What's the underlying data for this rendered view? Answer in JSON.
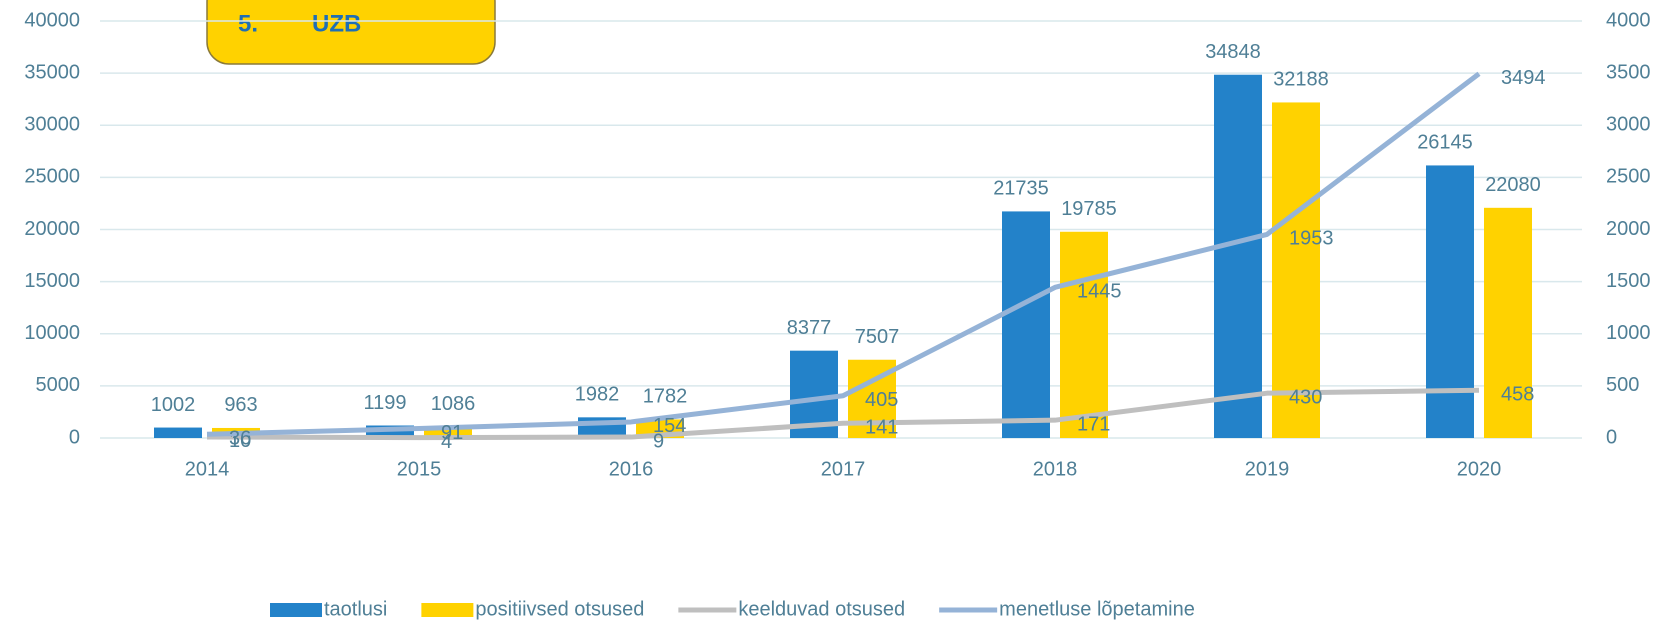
{
  "chart_data": {
    "type": "bar-line",
    "title_number": "5.",
    "title": "UZB",
    "categories": [
      "2014",
      "2015",
      "2016",
      "2017",
      "2018",
      "2019",
      "2020"
    ],
    "series": [
      {
        "name": "taotlusi",
        "type": "bar",
        "color": "#2382c9",
        "values": [
          1002,
          1199,
          1982,
          8377,
          21735,
          34848,
          26145
        ]
      },
      {
        "name": "positiivsed otsused",
        "type": "bar",
        "color": "#ffd200",
        "values": [
          963,
          1086,
          1782,
          7507,
          19785,
          32188,
          22080
        ]
      },
      {
        "name": "keelduvad otsused",
        "type": "line",
        "axis": "y2",
        "color": "#bfbfbf",
        "values": [
          10,
          4,
          9,
          141,
          171,
          430,
          458
        ]
      },
      {
        "name": "menetluse lõpetamine",
        "type": "line",
        "axis": "y2",
        "color": "#95b3d7",
        "values": [
          36,
          91,
          154,
          405,
          1445,
          1953,
          3494
        ]
      }
    ],
    "ylim": [
      0,
      40000
    ],
    "yticks": [
      0,
      5000,
      10000,
      15000,
      20000,
      25000,
      30000,
      35000,
      40000
    ],
    "y2lim": [
      0,
      4000
    ],
    "y2ticks": [
      0,
      500,
      1000,
      1500,
      2000,
      2500,
      3000,
      3500,
      4000
    ],
    "grid": true,
    "legend": "bottom"
  }
}
